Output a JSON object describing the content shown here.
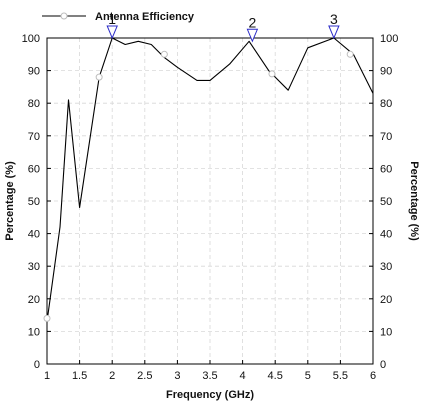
{
  "chart_data": {
    "type": "line",
    "title": "",
    "xlabel": "Frequency (GHz)",
    "ylabel": "Percentage (%)",
    "ylabel_right": "Percentage (%)",
    "xlim": [
      1,
      6
    ],
    "ylim": [
      0,
      100
    ],
    "x_ticks": [
      1,
      1.5,
      2,
      2.5,
      3,
      3.5,
      4,
      4.5,
      5,
      5.5,
      6
    ],
    "x_tick_labels": [
      "1",
      "1.5",
      "2",
      "2.5",
      "3",
      "3.5",
      "4",
      "4.5",
      "5",
      "5.5",
      "6"
    ],
    "y_ticks": [
      0,
      10,
      20,
      30,
      40,
      50,
      60,
      70,
      80,
      90,
      100
    ],
    "y_tick_labels": [
      "0",
      "10",
      "20",
      "30",
      "40",
      "50",
      "60",
      "70",
      "80",
      "90",
      "100"
    ],
    "grid": true,
    "legend_position": "top-left",
    "series": [
      {
        "name": "Antenna Efficiency",
        "color": "#000000",
        "x": [
          1.0,
          1.2,
          1.33,
          1.5,
          1.8,
          2.0,
          2.2,
          2.4,
          2.6,
          2.8,
          3.0,
          3.3,
          3.5,
          3.8,
          4.1,
          4.4,
          4.7,
          5.0,
          5.4,
          5.7,
          6.0
        ],
        "y": [
          13,
          42,
          81,
          48,
          88,
          100,
          98,
          99,
          98,
          94,
          91,
          87,
          87,
          92,
          99,
          90,
          84,
          97,
          100,
          95,
          83
        ],
        "marker_x": [
          1.0,
          1.8,
          2.8,
          4.45,
          5.65
        ],
        "marker_y": [
          14,
          88,
          95,
          89,
          95
        ]
      }
    ],
    "annotations": [
      {
        "label": "1",
        "x": 2.0,
        "y": 100
      },
      {
        "label": "2",
        "x": 4.15,
        "y": 99
      },
      {
        "label": "3",
        "x": 5.4,
        "y": 100
      }
    ]
  }
}
